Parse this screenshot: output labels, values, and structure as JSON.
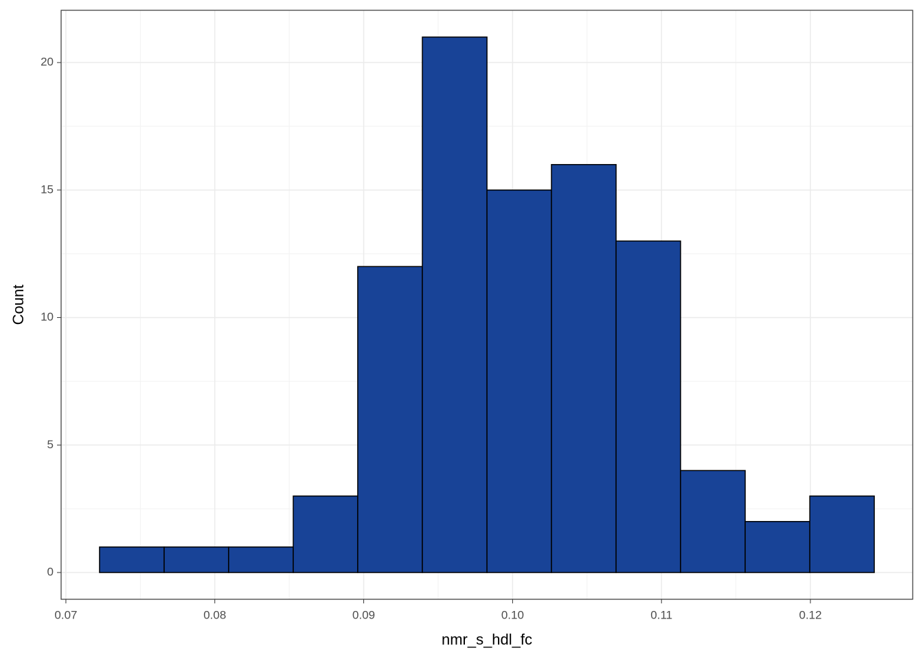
{
  "chart_data": {
    "type": "histogram",
    "x_label": "nmr_s_hdl_fc",
    "y_label": "Count",
    "bins": [
      0.07226,
      0.0766,
      0.08093,
      0.08527,
      0.0896,
      0.09394,
      0.09828,
      0.10261,
      0.10695,
      0.11128,
      0.11562,
      0.11996,
      0.12429
    ],
    "values": [
      1,
      1,
      1,
      3,
      12,
      21,
      15,
      16,
      13,
      4,
      2,
      3
    ],
    "color": "#184397",
    "edge_color": "#000000",
    "xlim": [
      0.06968,
      0.12687
    ],
    "ylim": [
      -1.05,
      22.05
    ],
    "xticks": [
      0.07,
      0.08,
      0.09,
      {
        "value": 0.1,
        "label": "0.10"
      },
      0.11,
      0.12
    ],
    "yticks": [
      0,
      5,
      10,
      15,
      20
    ],
    "grid": true
  }
}
